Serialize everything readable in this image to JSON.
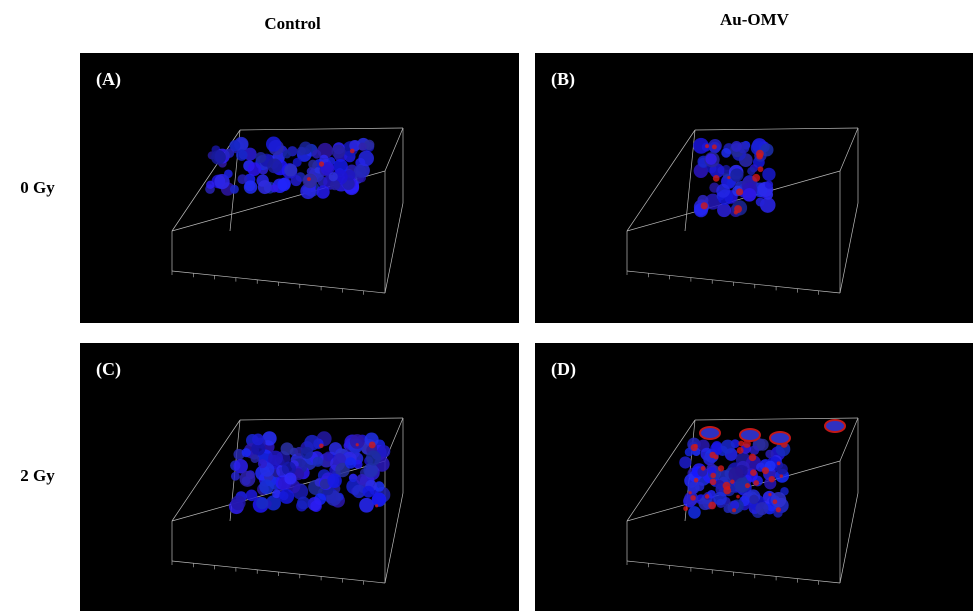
{
  "columns": [
    "Control",
    "Au-OMV"
  ],
  "rows": [
    "0 Gy",
    "2 Gy"
  ],
  "panels": [
    {
      "label": "(A)"
    },
    {
      "label": "(B)"
    },
    {
      "label": "(C)"
    },
    {
      "label": "(D)"
    }
  ]
}
